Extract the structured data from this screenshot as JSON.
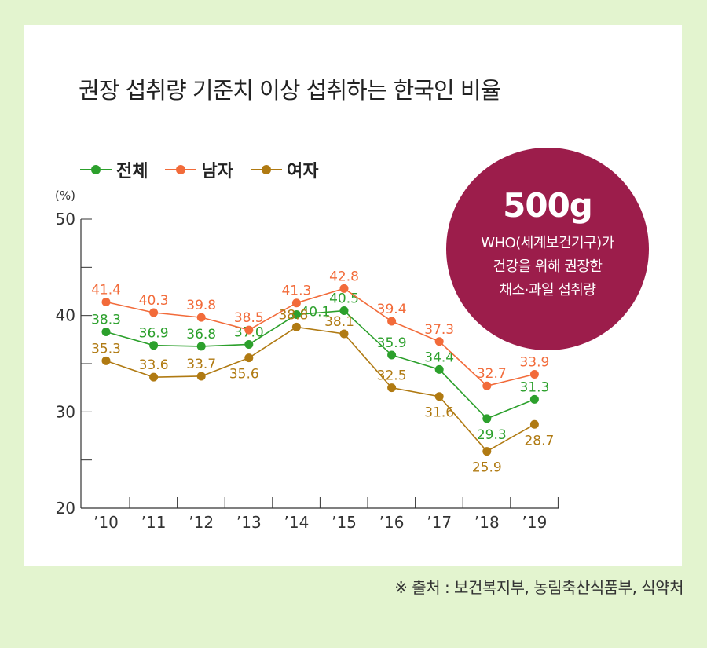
{
  "title": "권장 섭취량 기준치 이상 섭취하는 한국인 비율",
  "unit": "(%)",
  "badge": {
    "amount": "500g",
    "lines": [
      "WHO(세계보건기구)가",
      "건강을 위해 권장한",
      "채소·과일 섭취량"
    ]
  },
  "source": "※ 출처 : 보건복지부, 농림축산식품부, 식약처",
  "colors": {
    "total": "#2ca02c",
    "male": "#f26b3a",
    "female": "#b07a12",
    "badge": "#9c1d4b"
  },
  "chart_data": {
    "type": "line",
    "title": "권장 섭취량 기준치 이상 섭취하는 한국인 비율",
    "ylabel": "(%)",
    "ylim": [
      20,
      50
    ],
    "yticks": [
      20,
      30,
      40,
      50
    ],
    "legend": "top-left",
    "x": [
      "’10",
      "’11",
      "’12",
      "’13",
      "’14",
      "’15",
      "’16",
      "’17",
      "’18",
      "’19"
    ],
    "series": [
      {
        "name": "전체",
        "color": "#2ca02c",
        "values": [
          38.3,
          36.9,
          36.8,
          37.0,
          40.1,
          40.5,
          35.9,
          34.4,
          29.3,
          31.3
        ]
      },
      {
        "name": "남자",
        "color": "#f26b3a",
        "values": [
          41.4,
          40.3,
          39.8,
          38.5,
          41.3,
          42.8,
          39.4,
          37.3,
          32.7,
          33.9
        ]
      },
      {
        "name": "여자",
        "color": "#b07a12",
        "values": [
          35.3,
          33.6,
          33.7,
          35.6,
          38.8,
          38.1,
          32.5,
          31.6,
          25.9,
          28.7
        ]
      }
    ]
  }
}
